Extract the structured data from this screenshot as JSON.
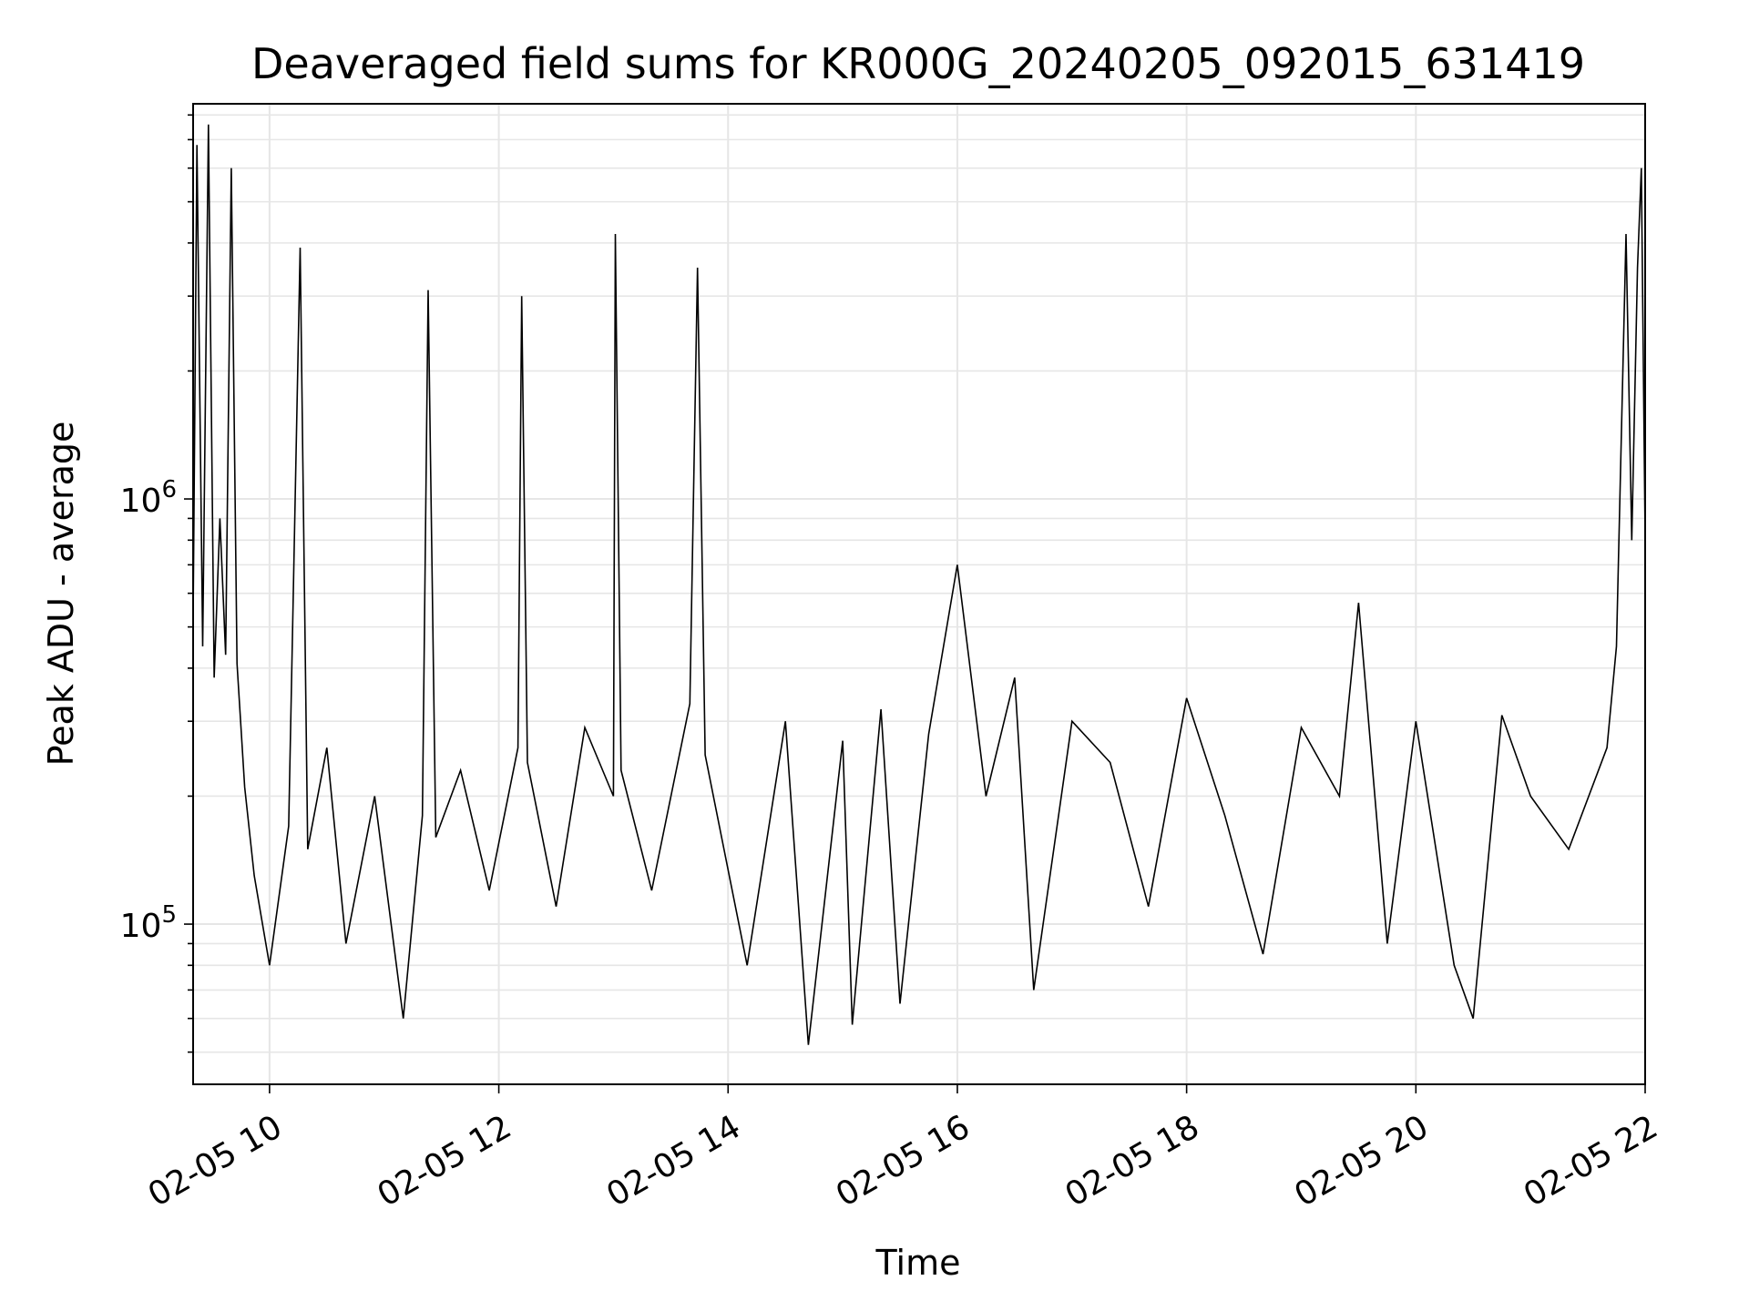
{
  "chart_data": {
    "type": "line",
    "title": "Deaveraged field sums for KR000G_20240205_092015_631419",
    "xlabel": "Time",
    "ylabel": "Peak ADU - average",
    "y_scale": "log",
    "ylim": [
      42000,
      8500000
    ],
    "xlim": [
      "2024-02-05T09:20",
      "2024-02-05T22:00"
    ],
    "grid": true,
    "line_color": "#000000",
    "x_ticks": [
      {
        "value": "2024-02-05T10:00",
        "label": "02-05 10"
      },
      {
        "value": "2024-02-05T12:00",
        "label": "02-05 12"
      },
      {
        "value": "2024-02-05T14:00",
        "label": "02-05 14"
      },
      {
        "value": "2024-02-05T16:00",
        "label": "02-05 16"
      },
      {
        "value": "2024-02-05T18:00",
        "label": "02-05 18"
      },
      {
        "value": "2024-02-05T20:00",
        "label": "02-05 20"
      },
      {
        "value": "2024-02-05T22:00",
        "label": "02-05 22"
      }
    ],
    "y_ticks": [
      {
        "value": 100000,
        "base": "10",
        "exp": "5"
      },
      {
        "value": 1000000,
        "base": "10",
        "exp": "6"
      }
    ],
    "series": [
      {
        "points": [
          [
            "2024-02-05T09:20",
            520000
          ],
          [
            "2024-02-05T09:22",
            6800000
          ],
          [
            "2024-02-05T09:25",
            450000
          ],
          [
            "2024-02-05T09:28",
            7600000
          ],
          [
            "2024-02-05T09:31",
            380000
          ],
          [
            "2024-02-05T09:34",
            900000
          ],
          [
            "2024-02-05T09:37",
            430000
          ],
          [
            "2024-02-05T09:40",
            6000000
          ],
          [
            "2024-02-05T09:43",
            410000
          ],
          [
            "2024-02-05T09:47",
            210000
          ],
          [
            "2024-02-05T09:52",
            130000
          ],
          [
            "2024-02-05T10:00",
            80000
          ],
          [
            "2024-02-05T10:10",
            170000
          ],
          [
            "2024-02-05T10:16",
            3900000
          ],
          [
            "2024-02-05T10:20",
            150000
          ],
          [
            "2024-02-05T10:30",
            260000
          ],
          [
            "2024-02-05T10:40",
            90000
          ],
          [
            "2024-02-05T10:55",
            200000
          ],
          [
            "2024-02-05T11:10",
            60000
          ],
          [
            "2024-02-05T11:20",
            180000
          ],
          [
            "2024-02-05T11:23",
            3100000
          ],
          [
            "2024-02-05T11:27",
            160000
          ],
          [
            "2024-02-05T11:40",
            230000
          ],
          [
            "2024-02-05T11:55",
            120000
          ],
          [
            "2024-02-05T12:10",
            260000
          ],
          [
            "2024-02-05T12:12",
            3000000
          ],
          [
            "2024-02-05T12:15",
            240000
          ],
          [
            "2024-02-05T12:30",
            110000
          ],
          [
            "2024-02-05T12:45",
            290000
          ],
          [
            "2024-02-05T13:00",
            200000
          ],
          [
            "2024-02-05T13:01",
            4200000
          ],
          [
            "2024-02-05T13:04",
            230000
          ],
          [
            "2024-02-05T13:20",
            120000
          ],
          [
            "2024-02-05T13:40",
            330000
          ],
          [
            "2024-02-05T13:44",
            3500000
          ],
          [
            "2024-02-05T13:48",
            250000
          ],
          [
            "2024-02-05T14:10",
            80000
          ],
          [
            "2024-02-05T14:30",
            300000
          ],
          [
            "2024-02-05T14:42",
            52000
          ],
          [
            "2024-02-05T15:00",
            270000
          ],
          [
            "2024-02-05T15:05",
            58000
          ],
          [
            "2024-02-05T15:20",
            320000
          ],
          [
            "2024-02-05T15:30",
            65000
          ],
          [
            "2024-02-05T15:45",
            280000
          ],
          [
            "2024-02-05T16:00",
            700000
          ],
          [
            "2024-02-05T16:15",
            200000
          ],
          [
            "2024-02-05T16:30",
            380000
          ],
          [
            "2024-02-05T16:40",
            70000
          ],
          [
            "2024-02-05T17:00",
            300000
          ],
          [
            "2024-02-05T17:20",
            240000
          ],
          [
            "2024-02-05T17:40",
            110000
          ],
          [
            "2024-02-05T18:00",
            340000
          ],
          [
            "2024-02-05T18:20",
            180000
          ],
          [
            "2024-02-05T18:40",
            85000
          ],
          [
            "2024-02-05T19:00",
            290000
          ],
          [
            "2024-02-05T19:20",
            200000
          ],
          [
            "2024-02-05T19:30",
            570000
          ],
          [
            "2024-02-05T19:45",
            90000
          ],
          [
            "2024-02-05T20:00",
            300000
          ],
          [
            "2024-02-05T20:20",
            80000
          ],
          [
            "2024-02-05T20:30",
            60000
          ],
          [
            "2024-02-05T20:45",
            310000
          ],
          [
            "2024-02-05T21:00",
            200000
          ],
          [
            "2024-02-05T21:20",
            150000
          ],
          [
            "2024-02-05T21:40",
            260000
          ],
          [
            "2024-02-05T21:45",
            450000
          ],
          [
            "2024-02-05T21:50",
            4200000
          ],
          [
            "2024-02-05T21:53",
            800000
          ],
          [
            "2024-02-05T21:56",
            3500000
          ],
          [
            "2024-02-05T21:58",
            6000000
          ],
          [
            "2024-02-05T22:00",
            800000
          ]
        ]
      }
    ]
  }
}
